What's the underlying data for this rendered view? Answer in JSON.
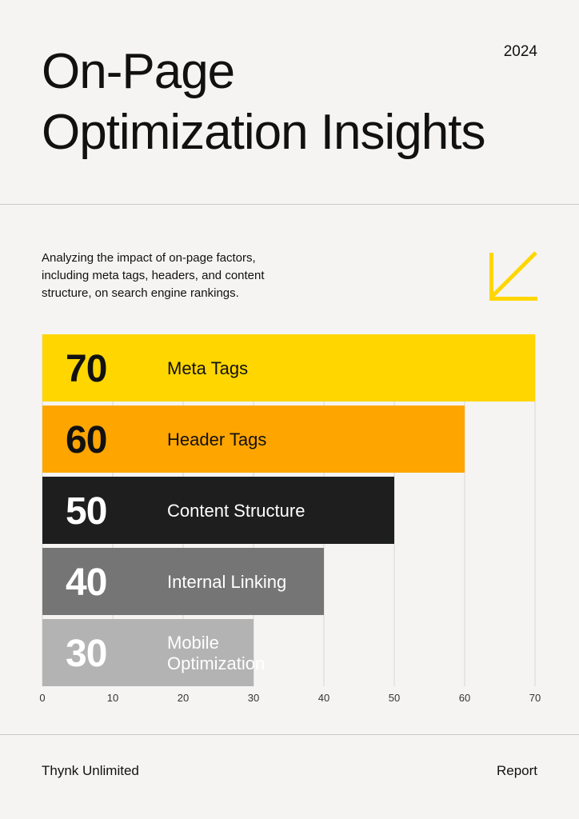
{
  "header": {
    "title_lines": [
      "On-Page",
      "Optimization Insights"
    ],
    "year": "2024"
  },
  "subtitle": "Analyzing the impact of on-page factors, including meta tags, headers, and content structure, on search engine rankings.",
  "footer": {
    "left": "Thynk Unlimited",
    "right": "Report"
  },
  "icons": {
    "accent_arrow": "arrow-down-left-icon"
  },
  "chart_data": {
    "type": "bar",
    "orientation": "horizontal",
    "categories": [
      "Meta Tags",
      "Header Tags",
      "Content Structure",
      "Internal Linking",
      "Mobile Optimization"
    ],
    "category_lines": [
      [
        "Meta Tags"
      ],
      [
        "Header Tags"
      ],
      [
        "Content Structure"
      ],
      [
        "Internal Linking"
      ],
      [
        "Mobile",
        "Optimization"
      ]
    ],
    "values": [
      70,
      60,
      50,
      40,
      30
    ],
    "value_labels": [
      "70",
      "60",
      "50",
      "40",
      "30"
    ],
    "bar_colors": [
      "#ffd600",
      "#ffa500",
      "#1e1e1e",
      "#757575",
      "#b3b3b3"
    ],
    "label_colors": [
      "#111111",
      "#111111",
      "#ffffff",
      "#ffffff",
      "#ffffff"
    ],
    "xlim": [
      0,
      70
    ],
    "xticks": [
      0,
      10,
      20,
      30,
      40,
      50,
      60,
      70
    ],
    "grid": true,
    "legend": "none"
  }
}
